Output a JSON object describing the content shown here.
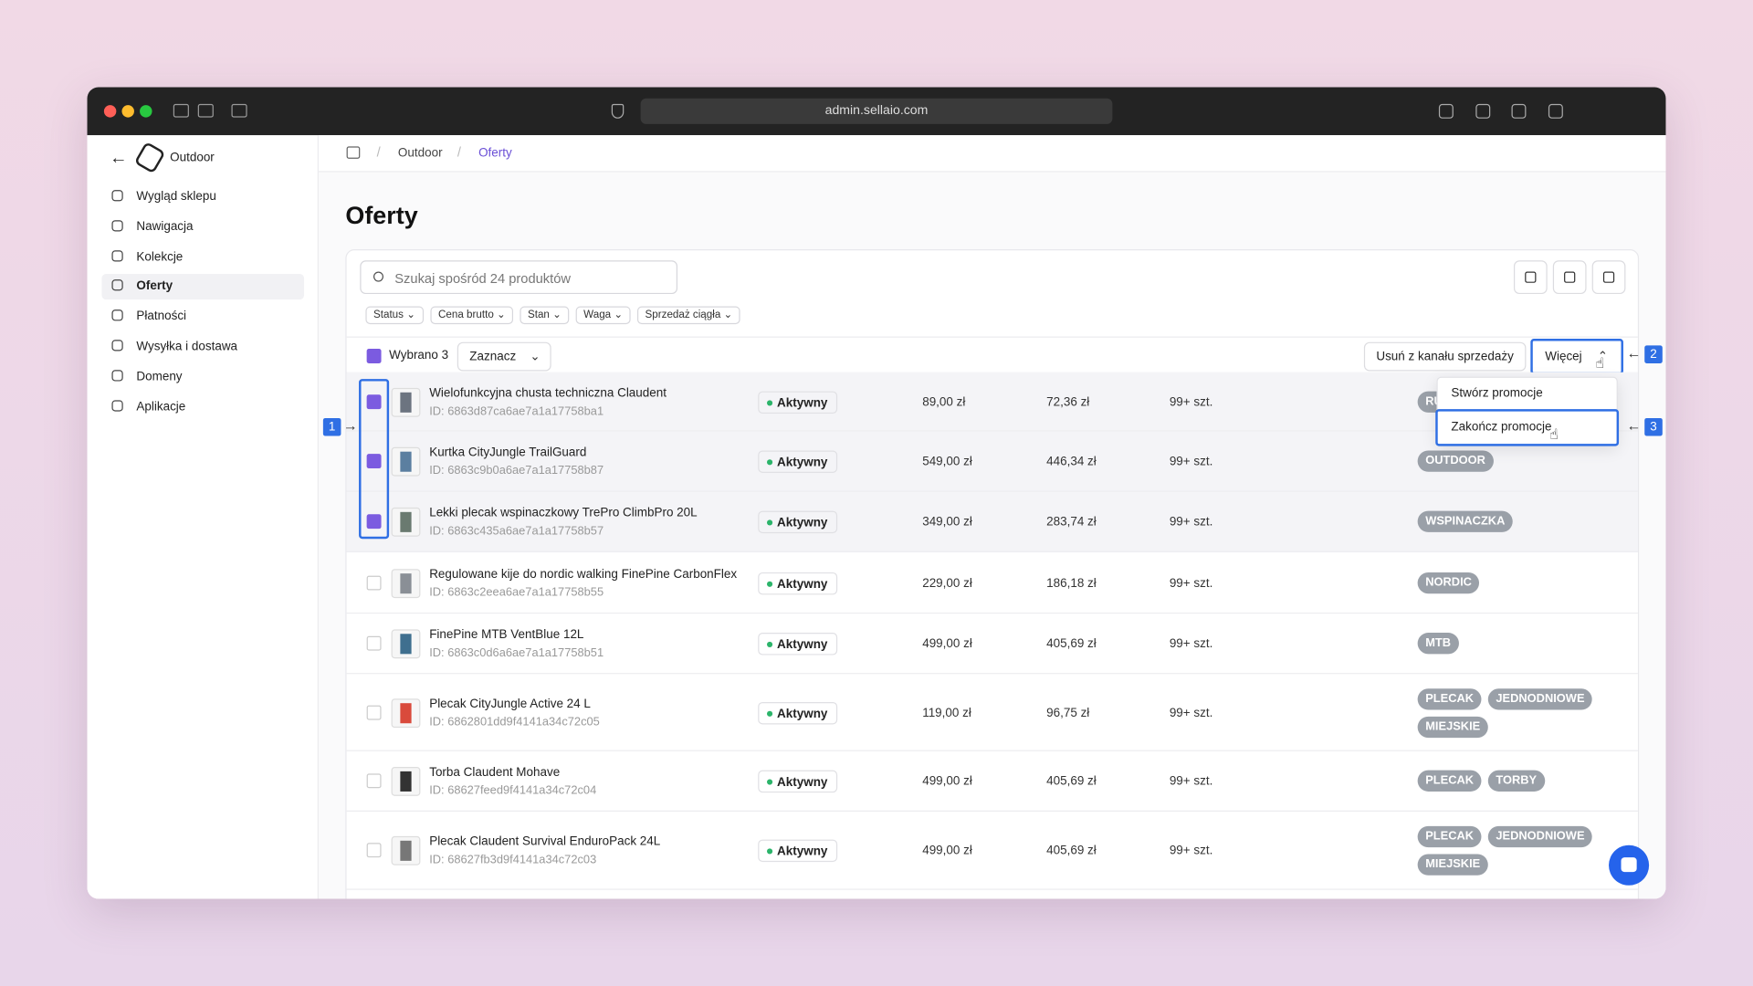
{
  "browser": {
    "url": "admin.sellaio.com"
  },
  "sidebar": {
    "store": "Outdoor",
    "items": [
      "Wygląd sklepu",
      "Nawigacja",
      "Kolekcje",
      "Oferty",
      "Płatności",
      "Wysyłka i dostawa",
      "Domeny",
      "Aplikacje"
    ],
    "active": 3
  },
  "breadcrumb": [
    "Outdoor",
    "Oferty"
  ],
  "page_title": "Oferty",
  "search_placeholder": "Szukaj spośród 24 produktów",
  "filters": [
    "Status",
    "Cena brutto",
    "Stan",
    "Waga",
    "Sprzedaż ciągła"
  ],
  "selection": {
    "label": "Wybrano 3",
    "select_button": "Zaznacz",
    "remove_button": "Usuń z kanału sprzedaży",
    "more_button": "Więcej"
  },
  "dropdown": [
    "Stwórz promocje",
    "Zakończ promocje"
  ],
  "annotations": [
    "1",
    "2",
    "3"
  ],
  "rows": [
    {
      "name": "Wielofunkcyjna chusta techniczna Claudent",
      "id": "ID: 6863d87ca6ae7a1a17758ba1",
      "status": "Aktywny",
      "price": "89,00 zł",
      "net": "72,36 zł",
      "stock": "99+ szt.",
      "tags": [
        "RU"
      ],
      "checked": true,
      "thumb": "#6c7480"
    },
    {
      "name": "Kurtka CityJungle TrailGuard",
      "id": "ID: 6863c9b0a6ae7a1a17758b87",
      "status": "Aktywny",
      "price": "549,00 zł",
      "net": "446,34 zł",
      "stock": "99+ szt.",
      "tags": [
        "OUTDOOR"
      ],
      "checked": true,
      "thumb": "#5b7fa0"
    },
    {
      "name": "Lekki plecak wspinaczkowy TrePro ClimbPro 20L",
      "id": "ID: 6863c435a6ae7a1a17758b57",
      "status": "Aktywny",
      "price": "349,00 zł",
      "net": "283,74 zł",
      "stock": "99+ szt.",
      "tags": [
        "WSPINACZKA"
      ],
      "checked": true,
      "thumb": "#6a7a70"
    },
    {
      "name": "Regulowane kije do nordic walking FinePine CarbonFlex",
      "id": "ID: 6863c2eea6ae7a1a17758b55",
      "status": "Aktywny",
      "price": "229,00 zł",
      "net": "186,18 zł",
      "stock": "99+ szt.",
      "tags": [
        "NORDIC"
      ],
      "checked": false,
      "thumb": "#8a8f96"
    },
    {
      "name": "FinePine MTB VentBlue 12L",
      "id": "ID: 6863c0d6a6ae7a1a17758b51",
      "status": "Aktywny",
      "price": "499,00 zł",
      "net": "405,69 zł",
      "stock": "99+ szt.",
      "tags": [
        "MTB"
      ],
      "checked": false,
      "thumb": "#3f6f8f"
    },
    {
      "name": "Plecak CityJungle Active 24 L",
      "id": "ID: 6862801dd9f4141a34c72c05",
      "status": "Aktywny",
      "price": "119,00 zł",
      "net": "96,75 zł",
      "stock": "99+ szt.",
      "tags": [
        "PLECAK",
        "JEDNODNIOWE",
        "MIEJSKIE"
      ],
      "checked": false,
      "thumb": "#d94a3c"
    },
    {
      "name": "Torba Claudent Mohave",
      "id": "ID: 68627feed9f4141a34c72c04",
      "status": "Aktywny",
      "price": "499,00 zł",
      "net": "405,69 zł",
      "stock": "99+ szt.",
      "tags": [
        "PLECAK",
        "TORBY"
      ],
      "checked": false,
      "thumb": "#333"
    },
    {
      "name": "Plecak Claudent Survival EnduroPack 24L",
      "id": "ID: 68627fb3d9f4141a34c72c03",
      "status": "Aktywny",
      "price": "499,00 zł",
      "net": "405,69 zł",
      "stock": "99+ szt.",
      "tags": [
        "PLECAK",
        "JEDNODNIOWE",
        "MIEJSKIE"
      ],
      "checked": false,
      "thumb": "#777"
    }
  ]
}
